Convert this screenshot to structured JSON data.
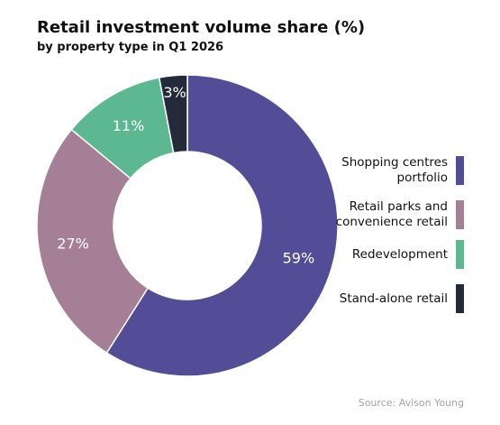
{
  "title": "Retail investment volume share (%)",
  "subtitle": "by property type in Q1 2026",
  "source": "Source: Avison Young",
  "chart_data": {
    "type": "pie",
    "title": "Retail investment volume share (%)",
    "subtitle": "by property type in Q1 2026",
    "legend_position": "right",
    "categories": [
      "Shopping centres portfolio",
      "Retail parks and convenience retail",
      "Redevelopment",
      "Stand-alone retail"
    ],
    "values": [
      59,
      27,
      11,
      3
    ],
    "labels": [
      "59%",
      "27%",
      "11%",
      "3%"
    ],
    "colors": [
      "#534c97",
      "#a47f96",
      "#5bb891",
      "#232a39"
    ],
    "legend": [
      {
        "label": "Shopping centres portfolio",
        "color": "#534c97"
      },
      {
        "label": "Retail parks and convenience retail",
        "color": "#a47f96"
      },
      {
        "label": "Redevelopment",
        "color": "#5bb891"
      },
      {
        "label": "Stand-alone retail",
        "color": "#232a39"
      }
    ]
  }
}
